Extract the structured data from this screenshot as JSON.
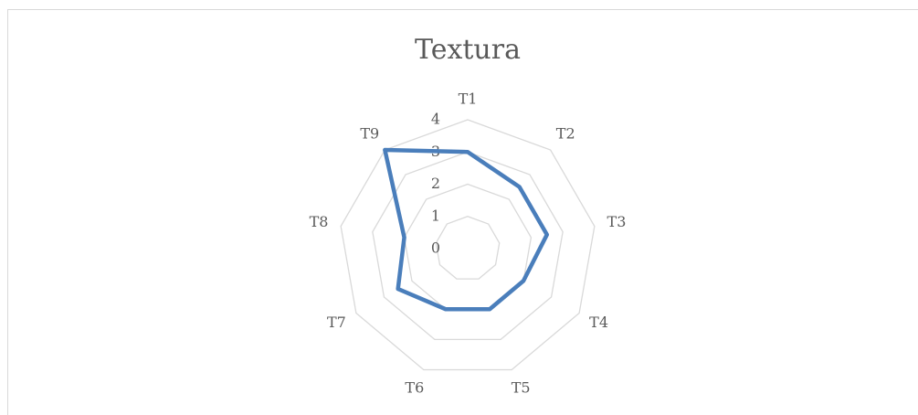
{
  "chart_data": {
    "type": "radar",
    "title": "Textura",
    "categories": [
      "T1",
      "T2",
      "T3",
      "T4",
      "T5",
      "T6",
      "T7",
      "T8",
      "T9"
    ],
    "series": [
      {
        "name": "Textura",
        "color": "#4a7ebb",
        "values": [
          3,
          2.5,
          2.5,
          2,
          2,
          2,
          2.5,
          2,
          4
        ]
      }
    ],
    "ylim": [
      0,
      4
    ],
    "yticks": [
      0,
      1,
      2,
      3,
      4
    ],
    "grid": true
  }
}
